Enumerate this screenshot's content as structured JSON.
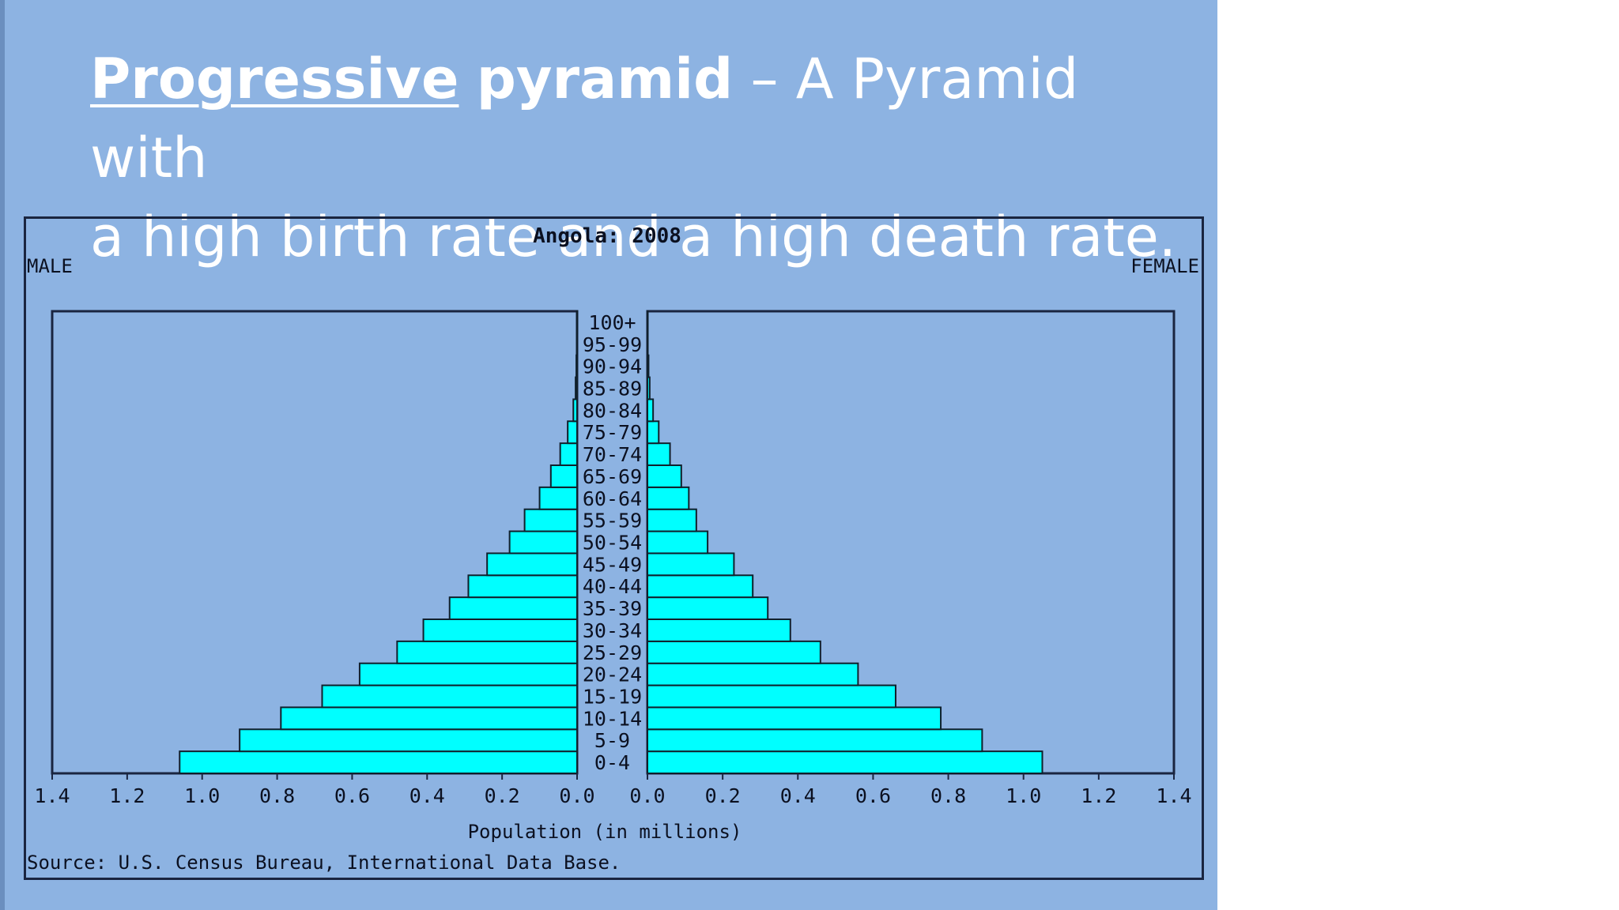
{
  "slide": {
    "title_keyword": "Progressive",
    "title_bold": "pyramid",
    "title_rest_line1": " – A Pyramid with",
    "title_line2": "a high birth rate and a high death rate."
  },
  "chart_data": {
    "type": "bar",
    "orientation": "horizontal-pyramid",
    "title": "Angola: 2008",
    "left_label": "MALE",
    "right_label": "FEMALE",
    "xlabel": "Population (in millions)",
    "source": "Source: U.S. Census Bureau, International Data Base.",
    "xlim": [
      0,
      1.4
    ],
    "x_ticks": [
      "0.0",
      "0.2",
      "0.4",
      "0.6",
      "0.8",
      "1.0",
      "1.2",
      "1.4"
    ],
    "categories": [
      "0-4",
      "5-9",
      "10-14",
      "15-19",
      "20-24",
      "25-29",
      "30-34",
      "35-39",
      "40-44",
      "45-49",
      "50-54",
      "55-59",
      "60-64",
      "65-69",
      "70-74",
      "75-79",
      "80-84",
      "85-89",
      "90-94",
      "95-99",
      "100+"
    ],
    "series": [
      {
        "name": "MALE",
        "values": [
          1.06,
          0.9,
          0.79,
          0.68,
          0.58,
          0.48,
          0.41,
          0.34,
          0.29,
          0.24,
          0.18,
          0.14,
          0.1,
          0.07,
          0.045,
          0.025,
          0.01,
          0.004,
          0.002,
          0.001,
          0.0005
        ]
      },
      {
        "name": "FEMALE",
        "values": [
          1.05,
          0.89,
          0.78,
          0.66,
          0.56,
          0.46,
          0.38,
          0.32,
          0.28,
          0.23,
          0.16,
          0.13,
          0.11,
          0.09,
          0.06,
          0.03,
          0.015,
          0.006,
          0.003,
          0.001,
          0.0005
        ]
      }
    ],
    "bar_color": "#00ffff",
    "grid": false,
    "legend": "none"
  }
}
